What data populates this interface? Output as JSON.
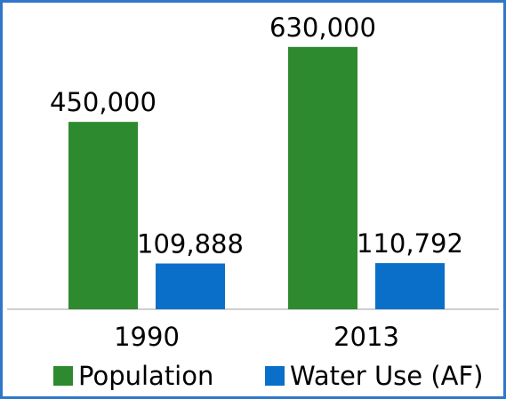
{
  "chart_data": {
    "type": "bar",
    "categories": [
      "1990",
      "2013"
    ],
    "series": [
      {
        "name": "Population",
        "values": [
          450000,
          630000
        ],
        "color": "#2e8a2e"
      },
      {
        "name": "Water Use (AF)",
        "values": [
          109888,
          110792
        ],
        "color": "#0a6fc8"
      }
    ],
    "data_labels": [
      [
        "450,000",
        "630,000"
      ],
      [
        "109,888",
        "110,792"
      ]
    ],
    "ylim": [
      0,
      700000
    ],
    "grid": false,
    "legend_position": "bottom"
  }
}
